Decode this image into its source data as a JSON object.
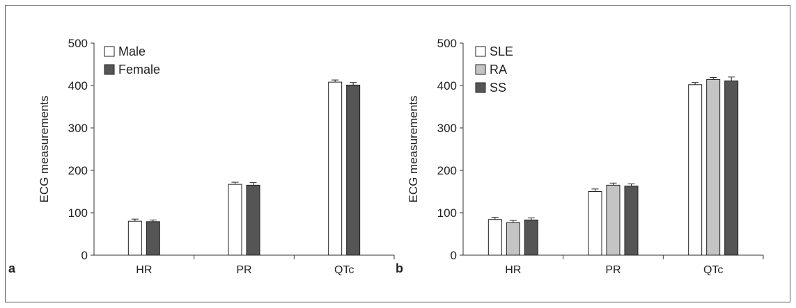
{
  "figure": {
    "panels": [
      {
        "label": "a"
      },
      {
        "label": "b"
      }
    ]
  },
  "chart_data": [
    {
      "type": "bar",
      "categories": [
        "HR",
        "PR",
        "QTc"
      ],
      "series": [
        {
          "name": "Male",
          "values": [
            80,
            167,
            408
          ],
          "errors": [
            5,
            5,
            5
          ],
          "color": "#ffffff"
        },
        {
          "name": "Female",
          "values": [
            79,
            165,
            401
          ],
          "errors": [
            4,
            6,
            6
          ],
          "color": "#555555"
        }
      ],
      "title": "",
      "xlabel": "",
      "ylabel": "ECG measurements",
      "ylim": [
        0,
        500
      ],
      "yticks": [
        0,
        100,
        200,
        300,
        400,
        500
      ],
      "grid": false,
      "legend": "top-left"
    },
    {
      "type": "bar",
      "categories": [
        "HR",
        "PR",
        "QTc"
      ],
      "series": [
        {
          "name": "SLE",
          "values": [
            84,
            150,
            402
          ],
          "errors": [
            5,
            6,
            5
          ],
          "color": "#ffffff"
        },
        {
          "name": "RA",
          "values": [
            77,
            165,
            414
          ],
          "errors": [
            5,
            5,
            5
          ],
          "color": "#c4c4c4"
        },
        {
          "name": "SS",
          "values": [
            83,
            163,
            411
          ],
          "errors": [
            5,
            5,
            9
          ],
          "color": "#555555"
        }
      ],
      "title": "",
      "xlabel": "",
      "ylabel": "ECG measurements",
      "ylim": [
        0,
        500
      ],
      "yticks": [
        0,
        100,
        200,
        300,
        400,
        500
      ],
      "grid": false,
      "legend": "top-left"
    }
  ]
}
